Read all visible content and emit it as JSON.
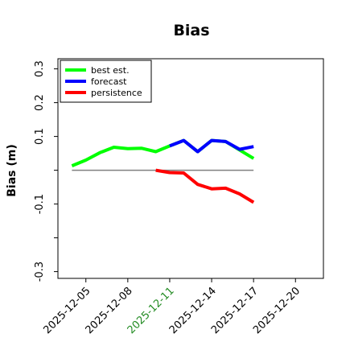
{
  "chart_data": {
    "type": "line",
    "title": "Bias",
    "xlabel": "",
    "ylabel": "Bias (m)",
    "ylim": [
      -0.32,
      0.33
    ],
    "yticks": [
      {
        "value": 0.3,
        "label": "0.3"
      },
      {
        "value": 0.2,
        "label": "0.2"
      },
      {
        "value": 0.1,
        "label": "0.1"
      },
      {
        "value": -0.1,
        "label": "-0.1"
      },
      {
        "value": -0.3,
        "label": "-0.3"
      }
    ],
    "yticks_unlabeled": [
      0.0,
      -0.2
    ],
    "xlim": [
      "2025-12-03",
      "2025-12-22"
    ],
    "xticks": [
      {
        "value": "2025-12-05",
        "label": "2025-12-05",
        "color": "#000000"
      },
      {
        "value": "2025-12-08",
        "label": "2025-12-08",
        "color": "#000000"
      },
      {
        "value": "2025-12-11",
        "label": "2025-12-11",
        "color": "#228b22"
      },
      {
        "value": "2025-12-14",
        "label": "2025-12-14",
        "color": "#000000"
      },
      {
        "value": "2025-12-17",
        "label": "2025-12-17",
        "color": "#000000"
      },
      {
        "value": "2025-12-20",
        "label": "2025-12-20",
        "color": "#000000"
      }
    ],
    "reference_line": {
      "y": 0.0,
      "x_start": "2025-12-04",
      "x_end": "2025-12-17",
      "color": "#808080"
    },
    "legend": {
      "placement": "top-left"
    },
    "grid": false,
    "series": [
      {
        "name": "best est.",
        "color": "#00ff00",
        "x": [
          "2025-12-04",
          "2025-12-05",
          "2025-12-06",
          "2025-12-07",
          "2025-12-08",
          "2025-12-09",
          "2025-12-10",
          "2025-12-11",
          "2025-12-12",
          "2025-12-13",
          "2025-12-14",
          "2025-12-15",
          "2025-12-16",
          "2025-12-17"
        ],
        "y": [
          0.013,
          0.03,
          0.052,
          0.068,
          0.064,
          0.065,
          0.055,
          0.072,
          0.088,
          0.055,
          0.088,
          0.085,
          0.06,
          0.035
        ]
      },
      {
        "name": "forecast",
        "color": "#0000ff",
        "x": [
          "2025-12-11",
          "2025-12-12",
          "2025-12-13",
          "2025-12-14",
          "2025-12-15",
          "2025-12-16",
          "2025-12-17"
        ],
        "y": [
          0.072,
          0.088,
          0.055,
          0.088,
          0.085,
          0.062,
          0.07
        ]
      },
      {
        "name": "persistence",
        "color": "#ff0000",
        "x": [
          "2025-12-10",
          "2025-12-11",
          "2025-12-12",
          "2025-12-13",
          "2025-12-14",
          "2025-12-15",
          "2025-12-16",
          "2025-12-17"
        ],
        "y": [
          0.0,
          -0.007,
          -0.008,
          -0.042,
          -0.055,
          -0.053,
          -0.07,
          -0.095
        ]
      }
    ]
  }
}
